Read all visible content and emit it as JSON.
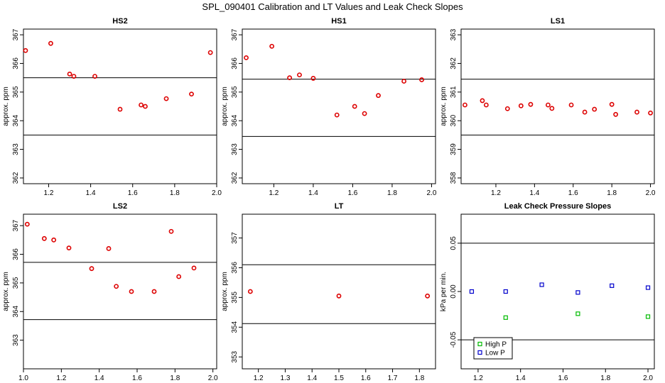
{
  "title": "SPL_090401  Calibration and LT Values and Leak Check Slopes",
  "colors": {
    "red": "#dd0000",
    "green": "#00bb00",
    "blue": "#0000cc",
    "axis": "#000000"
  },
  "chart_data": [
    {
      "type": "scatter",
      "title": "HS2",
      "ylabel": "approx. ppm",
      "xlim": [
        1.08,
        2.0
      ],
      "ylim": [
        361.8,
        367.2
      ],
      "xticks": [
        1.2,
        1.4,
        1.6,
        1.8,
        2.0
      ],
      "xtick_labels": [
        "1.2",
        "1.4",
        "1.6",
        "1.8",
        "2.0"
      ],
      "yticks": [
        362,
        363,
        364,
        365,
        366,
        367
      ],
      "ytick_labels": [
        "362",
        "363",
        "364",
        "365",
        "366",
        "367"
      ],
      "hlines": [
        365.5,
        363.5
      ],
      "series": [
        {
          "name": "calibration",
          "color": "red",
          "x": [
            1.09,
            1.21,
            1.3,
            1.32,
            1.42,
            1.54,
            1.64,
            1.66,
            1.76,
            1.88,
            1.97
          ],
          "y": [
            366.45,
            366.7,
            365.63,
            365.55,
            365.55,
            364.4,
            364.55,
            364.5,
            364.77,
            364.93,
            366.38
          ]
        }
      ]
    },
    {
      "type": "scatter",
      "title": "HS1",
      "ylabel": "approx. ppm",
      "xlim": [
        1.04,
        2.02
      ],
      "ylim": [
        361.8,
        367.2
      ],
      "xticks": [
        1.2,
        1.4,
        1.6,
        1.8,
        2.0
      ],
      "xtick_labels": [
        "1.2",
        "1.4",
        "1.6",
        "1.8",
        "2.0"
      ],
      "yticks": [
        362,
        363,
        364,
        365,
        366,
        367
      ],
      "ytick_labels": [
        "362",
        "363",
        "364",
        "365",
        "366",
        "367"
      ],
      "hlines": [
        365.45,
        363.45
      ],
      "series": [
        {
          "name": "calibration",
          "color": "red",
          "x": [
            1.06,
            1.19,
            1.28,
            1.33,
            1.4,
            1.52,
            1.61,
            1.66,
            1.73,
            1.86,
            1.95
          ],
          "y": [
            366.2,
            366.6,
            365.5,
            365.6,
            365.48,
            364.2,
            364.5,
            364.25,
            364.88,
            365.38,
            365.43
          ]
        }
      ]
    },
    {
      "type": "scatter",
      "title": "LS1",
      "ylabel": "approx. ppm",
      "xlim": [
        1.02,
        2.02
      ],
      "ylim": [
        357.8,
        363.2
      ],
      "xticks": [
        1.2,
        1.4,
        1.6,
        1.8,
        2.0
      ],
      "xtick_labels": [
        "1.2",
        "1.4",
        "1.6",
        "1.8",
        "2.0"
      ],
      "yticks": [
        358,
        359,
        360,
        361,
        362,
        363
      ],
      "ytick_labels": [
        "358",
        "359",
        "360",
        "361",
        "362",
        "363"
      ],
      "hlines": [
        361.45,
        359.5
      ],
      "series": [
        {
          "name": "calibration",
          "color": "red",
          "x": [
            1.04,
            1.13,
            1.15,
            1.26,
            1.33,
            1.38,
            1.47,
            1.49,
            1.59,
            1.66,
            1.71,
            1.8,
            1.82,
            1.93,
            2.0
          ],
          "y": [
            360.55,
            360.7,
            360.55,
            360.42,
            360.52,
            360.57,
            360.55,
            360.43,
            360.55,
            360.3,
            360.4,
            360.57,
            360.22,
            360.3,
            360.27
          ]
        }
      ]
    },
    {
      "type": "scatter",
      "title": "LS2",
      "ylabel": "approx. ppm",
      "xlim": [
        1.0,
        2.02
      ],
      "ylim": [
        362.0,
        367.4
      ],
      "xticks": [
        1.0,
        1.2,
        1.4,
        1.6,
        1.8,
        2.0
      ],
      "xtick_labels": [
        "1.0",
        "1.2",
        "1.4",
        "1.6",
        "1.8",
        "2.0"
      ],
      "yticks": [
        363,
        364,
        365,
        366,
        367
      ],
      "ytick_labels": [
        "363",
        "364",
        "365",
        "366",
        "367"
      ],
      "hlines": [
        365.72,
        363.72
      ],
      "series": [
        {
          "name": "calibration",
          "color": "red",
          "x": [
            1.02,
            1.11,
            1.16,
            1.24,
            1.36,
            1.45,
            1.49,
            1.57,
            1.69,
            1.78,
            1.82,
            1.9
          ],
          "y": [
            367.05,
            366.55,
            366.5,
            366.22,
            365.5,
            366.2,
            364.88,
            364.7,
            364.7,
            366.8,
            365.22,
            365.52
          ]
        }
      ]
    },
    {
      "type": "scatter",
      "title": "LT",
      "ylabel": "approx. ppm",
      "xlim": [
        1.14,
        1.86
      ],
      "ylim": [
        352.6,
        357.8
      ],
      "xticks": [
        1.2,
        1.3,
        1.4,
        1.5,
        1.6,
        1.7,
        1.8
      ],
      "xtick_labels": [
        "1.2",
        "1.3",
        "1.4",
        "1.5",
        "1.6",
        "1.7",
        "1.8"
      ],
      "yticks": [
        353,
        354,
        355,
        356,
        357
      ],
      "ytick_labels": [
        "353",
        "354",
        "355",
        "356",
        "357"
      ],
      "hlines": [
        356.1,
        354.12
      ],
      "series": [
        {
          "name": "LT",
          "color": "red",
          "x": [
            1.17,
            1.5,
            1.83
          ],
          "y": [
            355.2,
            355.05,
            355.05
          ]
        }
      ]
    },
    {
      "type": "scatter",
      "title": "Leak Check Pressure Slopes",
      "ylabel": "kPa per min.",
      "xlim": [
        1.12,
        2.03
      ],
      "ylim": [
        -0.08,
        0.08
      ],
      "xticks": [
        1.2,
        1.4,
        1.6,
        1.8,
        2.0
      ],
      "xtick_labels": [
        "1.2",
        "1.4",
        "1.6",
        "1.8",
        "2.0"
      ],
      "yticks": [
        -0.05,
        0.0,
        0.05
      ],
      "ytick_labels": [
        "-0.05",
        "0.00",
        "0.05"
      ],
      "hlines": [
        0.05,
        -0.05
      ],
      "legend": {
        "position": "bottom-left",
        "entries": [
          {
            "label": "High P",
            "color": "green"
          },
          {
            "label": "Low P",
            "color": "blue"
          }
        ]
      },
      "series": [
        {
          "name": "High P",
          "color": "green",
          "marker": "square",
          "x": [
            1.33,
            1.67,
            2.0
          ],
          "y": [
            -0.027,
            -0.023,
            -0.026
          ]
        },
        {
          "name": "Low P",
          "color": "blue",
          "marker": "square",
          "x": [
            1.17,
            1.33,
            1.5,
            1.67,
            1.83,
            2.0
          ],
          "y": [
            0.0,
            0.0,
            0.007,
            -0.001,
            0.006,
            0.004
          ]
        }
      ]
    }
  ]
}
